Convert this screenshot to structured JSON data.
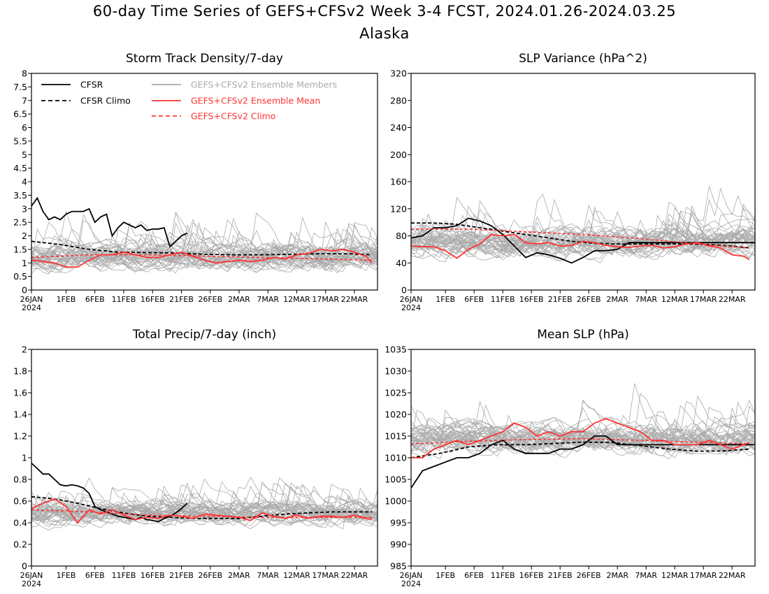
{
  "figure": {
    "title": "60-day Time Series of GEFS+CFSv2 Week 3-4 FCST, 2024.01.26-2024.03.25",
    "subtitle": "Alaska"
  },
  "colors": {
    "cfsr": "#000000",
    "members": "#aaaaaa",
    "mean": "#ff3333"
  },
  "legend": {
    "cfsr": "CFSR",
    "cfsr_climo": "CFSR Climo",
    "members": "GEFS+CFSv2 Ensemble Members",
    "mean": "GEFS+CFSv2 Ensemble Mean",
    "climo": "GEFS+CFSv2 Climo"
  },
  "x_axis": {
    "days": 60,
    "tick_days": [
      0,
      6,
      11,
      16,
      21,
      26,
      31,
      36,
      41,
      46,
      51,
      56
    ],
    "tick_labels": [
      "26JAN",
      "1FEB",
      "6FEB",
      "11FEB",
      "16FEB",
      "21FEB",
      "26FEB",
      "2MAR",
      "7MAR",
      "12MAR",
      "17MAR",
      "22MAR"
    ],
    "year_label": "2024"
  },
  "chart_data": [
    {
      "type": "line",
      "title": "Storm Track Density/7-day",
      "ylim": [
        0,
        8
      ],
      "y_ticks": [
        0,
        0.5,
        1,
        1.5,
        2,
        2.5,
        3,
        3.5,
        4,
        4.5,
        5,
        5.5,
        6,
        6.5,
        7,
        7.5,
        8
      ],
      "y_tick_labels": [
        "0",
        "0.5",
        "1",
        "1.5",
        "2",
        "2.5",
        "3",
        "3.5",
        "4",
        "4.5",
        "5",
        "5.5",
        "6",
        "6.5",
        "7",
        "7.5",
        "8"
      ],
      "members": {
        "count": 40,
        "center": 1.2,
        "spread": 0.85,
        "ymin": 0,
        "ymax": 4.3
      },
      "series": [
        {
          "role": "cfsr",
          "x": [
            0,
            1,
            2,
            3,
            4,
            5,
            6,
            7,
            8,
            9,
            10,
            11,
            12,
            13,
            14,
            15,
            16,
            17,
            18,
            19,
            20,
            21,
            22,
            23,
            24,
            25,
            26,
            27
          ],
          "y": [
            3.1,
            3.4,
            2.9,
            2.6,
            2.7,
            2.6,
            2.8,
            2.9,
            2.9,
            2.9,
            3.0,
            2.5,
            2.7,
            2.8,
            2.0,
            2.3,
            2.5,
            2.4,
            2.3,
            2.4,
            2.2,
            2.25,
            2.25,
            2.3,
            1.6,
            1.8,
            2.0,
            2.1
          ]
        },
        {
          "role": "cfsr_climo",
          "x": [
            0,
            5,
            10,
            15,
            20,
            25,
            30,
            35,
            40,
            45,
            50,
            55,
            59
          ],
          "y": [
            1.8,
            1.68,
            1.5,
            1.4,
            1.38,
            1.37,
            1.32,
            1.3,
            1.3,
            1.32,
            1.34,
            1.34,
            1.3
          ]
        },
        {
          "role": "mean",
          "x": [
            0,
            2,
            4,
            6,
            8,
            10,
            12,
            14,
            16,
            18,
            20,
            22,
            24,
            26,
            28,
            30,
            32,
            34,
            36,
            38,
            40,
            42,
            44,
            46,
            48,
            50,
            52,
            54,
            56,
            58,
            59
          ],
          "y": [
            1.1,
            1.05,
            1.0,
            0.85,
            0.85,
            1.1,
            1.3,
            1.3,
            1.4,
            1.3,
            1.2,
            1.2,
            1.3,
            1.4,
            1.25,
            1.1,
            1.0,
            1.05,
            1.1,
            1.05,
            1.1,
            1.2,
            1.15,
            1.3,
            1.35,
            1.5,
            1.45,
            1.5,
            1.4,
            1.25,
            1.0
          ]
        },
        {
          "role": "climo",
          "x": [
            0,
            10,
            20,
            30,
            40,
            50,
            59
          ],
          "y": [
            1.2,
            1.3,
            1.3,
            1.25,
            1.2,
            1.15,
            1.1
          ]
        }
      ]
    },
    {
      "type": "line",
      "title": "SLP Variance (hPa^2)",
      "ylim": [
        0,
        320
      ],
      "y_ticks": [
        0,
        40,
        80,
        120,
        160,
        200,
        240,
        280,
        320
      ],
      "y_tick_labels": [
        "0",
        "40",
        "80",
        "120",
        "160",
        "200",
        "240",
        "280",
        "320"
      ],
      "members": {
        "count": 40,
        "center": 70,
        "spread": 35,
        "ymin": 18,
        "ymax": 218
      },
      "series": [
        {
          "role": "cfsr",
          "x": [
            0,
            2,
            4,
            6,
            8,
            10,
            12,
            14,
            16,
            18,
            20,
            22,
            24,
            26,
            28,
            30,
            32,
            34,
            36,
            38,
            40,
            42,
            44,
            46,
            48,
            50,
            52,
            54,
            56,
            58,
            59,
            60,
            61,
            62,
            63
          ],
          "y": [
            77,
            80,
            92,
            92,
            95,
            106,
            102,
            95,
            82,
            65,
            48,
            55,
            52,
            47,
            40,
            48,
            58,
            58,
            60,
            70,
            70,
            70,
            70,
            70,
            70,
            70,
            70,
            70,
            70,
            70,
            70,
            70,
            70,
            70,
            70
          ]
        },
        {
          "role": "cfsr_climo",
          "x": [
            0,
            4,
            8,
            12,
            16,
            20,
            24,
            28,
            32,
            36,
            40,
            44,
            48,
            52,
            56,
            59
          ],
          "y": [
            99,
            99,
            97,
            92,
            87,
            82,
            77,
            72,
            69,
            68,
            68,
            68,
            68,
            67,
            65,
            62
          ]
        },
        {
          "role": "mean",
          "x": [
            0,
            2,
            4,
            6,
            8,
            10,
            12,
            14,
            16,
            18,
            20,
            22,
            24,
            26,
            28,
            30,
            32,
            34,
            36,
            38,
            40,
            42,
            44,
            46,
            48,
            50,
            52,
            54,
            56,
            58,
            59
          ],
          "y": [
            65,
            64,
            64,
            58,
            47,
            60,
            68,
            82,
            80,
            82,
            70,
            68,
            70,
            65,
            66,
            72,
            70,
            66,
            64,
            63,
            65,
            66,
            62,
            64,
            68,
            70,
            65,
            62,
            52,
            50,
            45
          ]
        },
        {
          "role": "climo",
          "x": [
            0,
            10,
            20,
            30,
            40,
            50,
            59
          ],
          "y": [
            90,
            90,
            86,
            82,
            76,
            68,
            62
          ]
        }
      ]
    },
    {
      "type": "line",
      "title": "Total Precip/7-day (inch)",
      "ylim": [
        0,
        2
      ],
      "y_ticks": [
        0,
        0.2,
        0.4,
        0.6,
        0.8,
        1,
        1.2,
        1.4,
        1.6,
        1.8,
        2
      ],
      "y_tick_labels": [
        "0",
        "0.2",
        "0.4",
        "0.6",
        "0.8",
        "1",
        "1.2",
        "1.4",
        "1.6",
        "1.8",
        "2"
      ],
      "members": {
        "count": 40,
        "center": 0.48,
        "spread": 0.17,
        "ymin": 0.08,
        "ymax": 1.0
      },
      "series": [
        {
          "role": "cfsr",
          "x": [
            0,
            1,
            2,
            3,
            4,
            5,
            6,
            7,
            8,
            9,
            10,
            11,
            12,
            13,
            14,
            15,
            16,
            17,
            18,
            19,
            20,
            21,
            22,
            23,
            24,
            25,
            26,
            27
          ],
          "y": [
            0.95,
            0.9,
            0.85,
            0.85,
            0.8,
            0.75,
            0.74,
            0.75,
            0.74,
            0.72,
            0.67,
            0.55,
            0.52,
            0.5,
            0.48,
            0.46,
            0.45,
            0.44,
            0.43,
            0.45,
            0.43,
            0.42,
            0.41,
            0.44,
            0.46,
            0.49,
            0.53,
            0.58
          ]
        },
        {
          "role": "cfsr_climo",
          "x": [
            0,
            4,
            8,
            12,
            16,
            20,
            24,
            28,
            32,
            36,
            40,
            44,
            48,
            52,
            56,
            59
          ],
          "y": [
            0.64,
            0.62,
            0.58,
            0.53,
            0.49,
            0.46,
            0.45,
            0.44,
            0.44,
            0.44,
            0.46,
            0.48,
            0.49,
            0.5,
            0.5,
            0.5
          ]
        },
        {
          "role": "mean",
          "x": [
            0,
            2,
            4,
            6,
            8,
            10,
            12,
            14,
            16,
            18,
            20,
            22,
            24,
            26,
            28,
            30,
            32,
            34,
            36,
            38,
            40,
            42,
            44,
            46,
            48,
            50,
            52,
            54,
            56,
            58,
            59
          ],
          "y": [
            0.53,
            0.58,
            0.62,
            0.55,
            0.4,
            0.52,
            0.48,
            0.52,
            0.47,
            0.43,
            0.45,
            0.44,
            0.47,
            0.46,
            0.44,
            0.48,
            0.47,
            0.46,
            0.45,
            0.42,
            0.49,
            0.46,
            0.44,
            0.47,
            0.44,
            0.46,
            0.46,
            0.45,
            0.47,
            0.44,
            0.43
          ]
        },
        {
          "role": "climo",
          "x": [
            0,
            10,
            20,
            30,
            40,
            50,
            59
          ],
          "y": [
            0.52,
            0.5,
            0.47,
            0.46,
            0.45,
            0.45,
            0.45
          ]
        }
      ]
    },
    {
      "type": "line",
      "title": "Mean SLP (hPa)",
      "ylim": [
        985,
        1035
      ],
      "y_ticks": [
        985,
        990,
        995,
        1000,
        1005,
        1010,
        1015,
        1020,
        1025,
        1030,
        1035
      ],
      "y_tick_labels": [
        "985",
        "990",
        "995",
        "1000",
        "1005",
        "1010",
        "1015",
        "1020",
        "1025",
        "1030",
        "1035"
      ],
      "members": {
        "count": 40,
        "center": 1014,
        "spread": 5.5,
        "ymin": 994,
        "ymax": 1033
      },
      "series": [
        {
          "role": "cfsr",
          "x": [
            0,
            2,
            4,
            6,
            8,
            10,
            12,
            14,
            16,
            18,
            20,
            22,
            24,
            26,
            28,
            30,
            32,
            34,
            36,
            38,
            40,
            42,
            44,
            46,
            48,
            50,
            52,
            54,
            56,
            58,
            59,
            60,
            61,
            62,
            63
          ],
          "y": [
            1003,
            1007,
            1008,
            1009,
            1010,
            1010,
            1011,
            1013,
            1014,
            1012,
            1011,
            1011,
            1011,
            1012,
            1012,
            1013,
            1015,
            1015,
            1013,
            1013,
            1013,
            1013,
            1013,
            1013,
            1013,
            1013,
            1013,
            1013,
            1013,
            1013,
            1013,
            1013,
            1013,
            1013,
            1013
          ]
        },
        {
          "role": "cfsr_climo",
          "x": [
            0,
            5,
            10,
            15,
            20,
            25,
            30,
            35,
            40,
            45,
            50,
            55,
            59
          ],
          "y": [
            1010,
            1011,
            1012.5,
            1013,
            1013,
            1013.3,
            1013.6,
            1013.5,
            1012.8,
            1012,
            1011.5,
            1011.6,
            1012
          ]
        },
        {
          "role": "mean",
          "x": [
            0,
            2,
            4,
            6,
            8,
            10,
            12,
            14,
            16,
            18,
            20,
            22,
            24,
            26,
            28,
            30,
            32,
            34,
            36,
            38,
            40,
            42,
            44,
            46,
            48,
            50,
            52,
            54,
            56,
            58,
            59
          ],
          "y": [
            1010,
            1010,
            1012,
            1013,
            1014,
            1013,
            1014,
            1015,
            1016,
            1018,
            1017,
            1015,
            1016,
            1015,
            1016,
            1016,
            1018,
            1019,
            1018,
            1017,
            1016,
            1014,
            1014,
            1013,
            1013,
            1013,
            1014,
            1013,
            1012,
            1013,
            1013.5
          ]
        },
        {
          "role": "climo",
          "x": [
            0,
            10,
            20,
            30,
            40,
            50,
            59
          ],
          "y": [
            1013.2,
            1013.8,
            1014.2,
            1014.4,
            1014,
            1013.6,
            1013.2
          ]
        }
      ]
    }
  ]
}
